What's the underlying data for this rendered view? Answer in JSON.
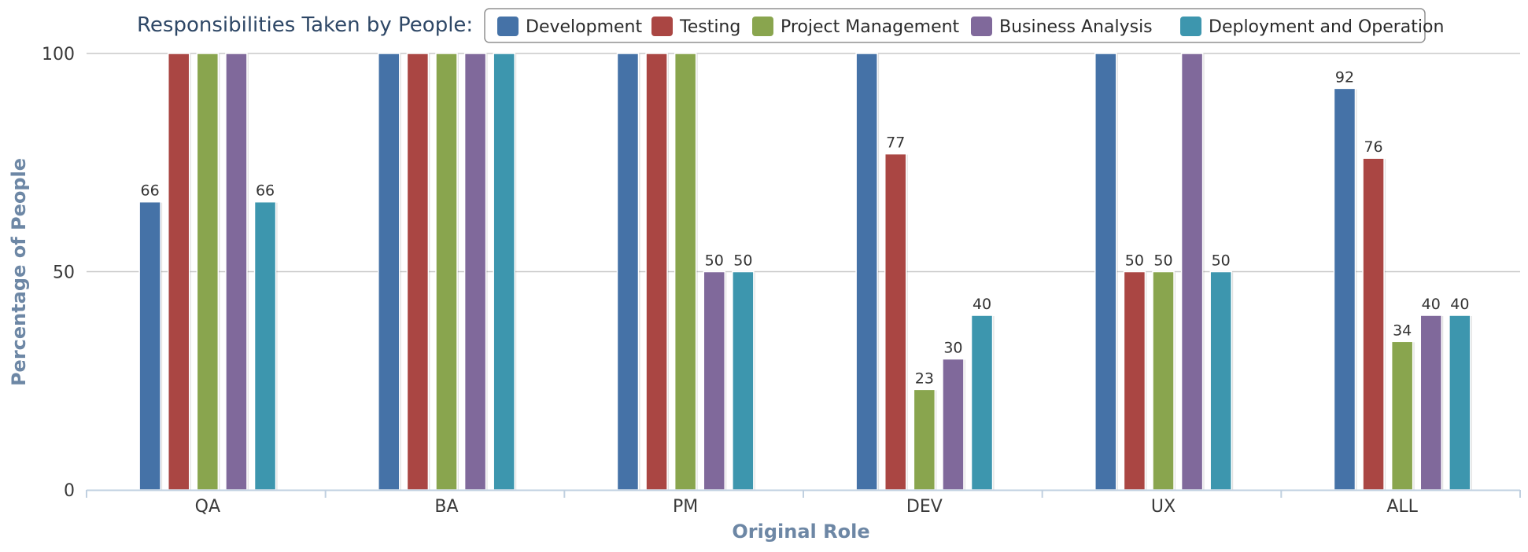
{
  "chart_data": {
    "type": "bar",
    "legend_title": "Responsibilities Taken by People:",
    "categories": [
      "QA",
      "BA",
      "PM",
      "DEV",
      "UX",
      "ALL"
    ],
    "series": [
      {
        "name": "Development",
        "color": "#4572a7",
        "values": [
          66,
          100,
          100,
          100,
          100,
          92
        ],
        "labels": [
          "66",
          "",
          "",
          "",
          "",
          "92"
        ]
      },
      {
        "name": "Testing",
        "color": "#aa4643",
        "values": [
          100,
          100,
          100,
          77,
          50,
          76
        ],
        "labels": [
          "",
          "",
          "",
          "77",
          "50",
          "76"
        ]
      },
      {
        "name": "Project Management",
        "color": "#89a54e",
        "values": [
          100,
          100,
          100,
          23,
          50,
          34
        ],
        "labels": [
          "",
          "",
          "",
          "23",
          "50",
          "34"
        ]
      },
      {
        "name": "Business Analysis",
        "color": "#80699b",
        "values": [
          100,
          100,
          50,
          30,
          100,
          40
        ],
        "labels": [
          "",
          "",
          "50",
          "30",
          "",
          "40"
        ]
      },
      {
        "name": "Deployment and Operation",
        "color": "#3d96ae",
        "values": [
          66,
          100,
          50,
          40,
          50,
          40
        ],
        "labels": [
          "66",
          "",
          "50",
          "40",
          "50",
          "40"
        ]
      }
    ],
    "xlabel": "Original Role",
    "ylabel": "Percentage of People",
    "ylim": [
      0,
      100
    ],
    "yticks": [
      "0",
      "50",
      "100"
    ],
    "grid": true,
    "legend_position": "top"
  }
}
